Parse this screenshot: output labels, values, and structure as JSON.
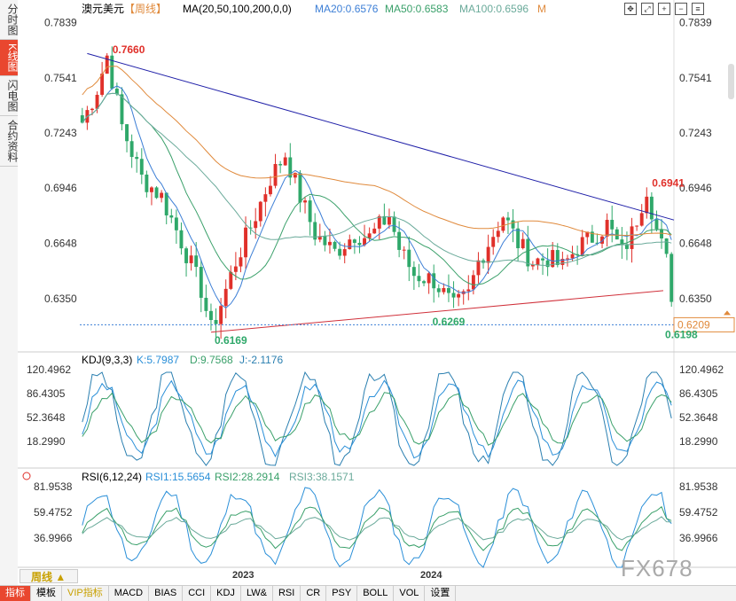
{
  "sidebar": {
    "tabs": [
      {
        "label": "分时图",
        "active": false
      },
      {
        "label": "K线图",
        "active": true
      },
      {
        "label": "闪电图",
        "active": false
      },
      {
        "label": "合约资料",
        "active": false
      }
    ]
  },
  "header": {
    "symbol": "澳元美元",
    "period_tag": "【周线】",
    "ma_params": "MA(20,50,100,200,0,0)",
    "ma20": "MA20:0.6576",
    "ma50": "MA50:0.6583",
    "ma100": "MA100:0.6596",
    "ma_m": "M"
  },
  "colors": {
    "up": "#e0302a",
    "down": "#2fa86a",
    "ma20": "#3d7fd6",
    "ma50": "#3aa06a",
    "ma100": "#6aaa9a",
    "ma200": "#e08a3c",
    "trend_top": "#1f1fa8",
    "trend_bottom": "#d0303a",
    "kdj_k": "#2a8fd8",
    "kdj_d": "#3aa06a",
    "kdj_j": "#2a7fb0"
  },
  "price_axis": {
    "ticks": [
      "0.7839",
      "0.7541",
      "0.7243",
      "0.6946",
      "0.6648",
      "0.6350"
    ],
    "current": "0.6209"
  },
  "annotations": [
    {
      "label": "0.7660",
      "color": "#e0302a"
    },
    {
      "label": "0.6941",
      "color": "#e0302a"
    },
    {
      "label": "0.6169",
      "color": "#2fa86a"
    },
    {
      "label": "0.6269",
      "color": "#2fa86a"
    },
    {
      "label": "0.6198",
      "color": "#2fa86a"
    }
  ],
  "kdj": {
    "title": "KDJ(9,3,3)",
    "k": "K:5.7987",
    "d": "D:9.7568",
    "j": "J:-2.1176",
    "ticks": [
      "120.4962",
      "86.4305",
      "52.3648",
      "18.2990"
    ]
  },
  "rsi": {
    "title": "RSI(6,12,24)",
    "rsi1": "RSI1:15.5654",
    "rsi2": "RSI2:28.2914",
    "rsi3": "RSI3:38.1571",
    "ticks": [
      "81.9538",
      "59.4752",
      "36.9966"
    ]
  },
  "time_axis": {
    "labels": [
      "2023",
      "2024"
    ]
  },
  "period_button": "周线",
  "toolbar": [
    "指标",
    "模板",
    "VIP指标",
    "MACD",
    "BIAS",
    "CCI",
    "KDJ",
    "LW&",
    "RSI",
    "CR",
    "PSY",
    "BOLL",
    "VOL",
    "设置"
  ],
  "watermark": "FX678",
  "chart_data": {
    "type": "candlestick",
    "title": "澳元美元【周线】",
    "ylim": [
      0.612,
      0.7865
    ],
    "series": [
      {
        "name": "MA20",
        "value": 0.6576
      },
      {
        "name": "MA50",
        "value": 0.6583
      },
      {
        "name": "MA100",
        "value": 0.6596
      }
    ],
    "price_levels": [
      0.766,
      0.6941,
      0.6169,
      0.6269,
      0.6198
    ],
    "last_price": 0.6209
  }
}
